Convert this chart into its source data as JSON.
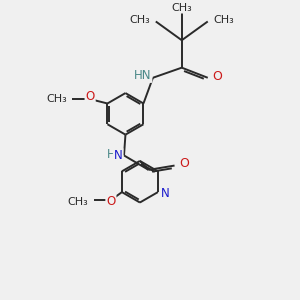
{
  "background_color": "#f0f0f0",
  "bond_color": "#2a2a2a",
  "bond_width": 1.4,
  "atom_colors": {
    "C": "#2a2a2a",
    "H": "#4a8888",
    "N": "#1a1acc",
    "O": "#cc1a1a"
  },
  "font_size": 8.5,
  "fig_size": [
    3.0,
    3.0
  ],
  "dpi": 100,
  "xlim": [
    0,
    10
  ],
  "ylim": [
    0,
    10
  ]
}
